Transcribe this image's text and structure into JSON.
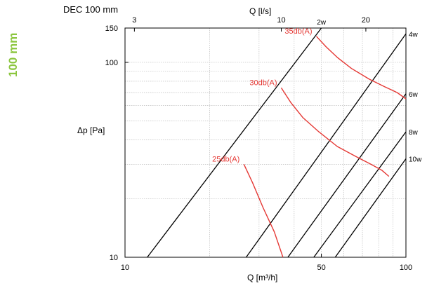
{
  "side_label": "100 mm",
  "chart_data": {
    "type": "line",
    "title": "DEC 100 mm",
    "xlabel": "Q [m³/h]",
    "x2label": "Q [l/s]",
    "ylabel": "Δp [Pa]",
    "x_scale": "log",
    "y_scale": "log",
    "xlim": [
      10,
      100
    ],
    "ylim": [
      10,
      150
    ],
    "x_ticks": [
      10,
      50,
      100
    ],
    "y_ticks": [
      10,
      100,
      150
    ],
    "x2_ticks": [
      3,
      10,
      20
    ],
    "grid": true,
    "series": [
      {
        "name": "2w",
        "points": [
          [
            12,
            10
          ],
          [
            50,
            150
          ]
        ],
        "color": "#000000"
      },
      {
        "name": "4w",
        "points": [
          [
            27,
            10
          ],
          [
            100,
            140
          ]
        ],
        "color": "#000000"
      },
      {
        "name": "6w",
        "points": [
          [
            38,
            10
          ],
          [
            100,
            69
          ]
        ],
        "color": "#000000"
      },
      {
        "name": "8w",
        "points": [
          [
            47,
            10
          ],
          [
            100,
            44
          ]
        ],
        "color": "#000000"
      },
      {
        "name": "10w",
        "points": [
          [
            56,
            10
          ],
          [
            100,
            32
          ]
        ],
        "color": "#000000"
      },
      {
        "name": "25db(A)",
        "points": [
          [
            26.5,
            30
          ],
          [
            28.5,
            24
          ],
          [
            31,
            18
          ],
          [
            34,
            13.5
          ],
          [
            36.5,
            10
          ]
        ],
        "color": "#e53935"
      },
      {
        "name": "30db(A)",
        "points": [
          [
            36,
            74
          ],
          [
            39,
            62
          ],
          [
            43,
            52
          ],
          [
            49,
            44
          ],
          [
            57,
            37
          ],
          [
            66,
            33
          ],
          [
            75,
            30
          ],
          [
            82,
            28
          ],
          [
            87,
            26
          ]
        ],
        "color": "#e53935"
      },
      {
        "name": "35db(A)",
        "points": [
          [
            48,
            136
          ],
          [
            52,
            120
          ],
          [
            57,
            106
          ],
          [
            64,
            93
          ],
          [
            74,
            82
          ],
          [
            84,
            75
          ],
          [
            93,
            70
          ],
          [
            100,
            65
          ]
        ],
        "color": "#e53935"
      }
    ],
    "annotations": [
      "35db(A)",
      "30db(A)",
      "25db(A)"
    ],
    "line_labels": [
      "2w",
      "4w",
      "6w",
      "8w",
      "10w"
    ]
  }
}
